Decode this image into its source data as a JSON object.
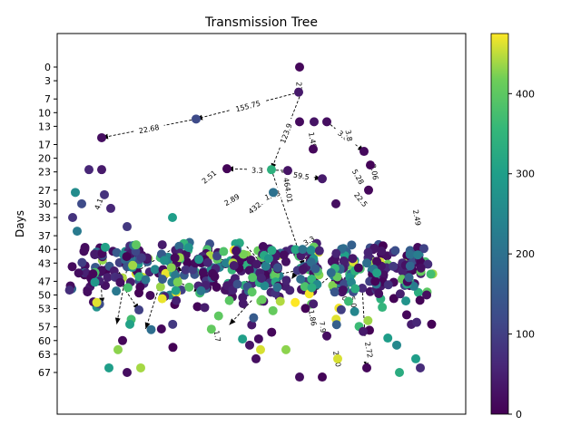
{
  "chart_data": {
    "type": "scatter",
    "title": "Transmission Tree",
    "xlabel": "",
    "ylabel": "Days",
    "ylim": [
      0,
      67
    ],
    "y_inverted": true,
    "y_ticks": [
      0,
      3,
      7,
      10,
      13,
      17,
      20,
      23,
      27,
      30,
      33,
      37,
      40,
      43,
      47,
      50,
      53,
      57,
      60,
      63,
      67
    ],
    "x_ticks_visible": false,
    "colormap": "viridis",
    "colorbar": {
      "range": [
        0,
        475
      ],
      "ticks": [
        0,
        100,
        200,
        300,
        400
      ]
    },
    "edges": [
      {
        "from": [
          330,
          3
        ],
        "to": [
          330,
          5.5
        ],
        "label": "27"
      },
      {
        "from": [
          330,
          5.5
        ],
        "to": [
          216,
          11.4
        ],
        "label": "155.75"
      },
      {
        "from": [
          216,
          11.4
        ],
        "to": [
          112,
          15.5
        ],
        "label": "22.68"
      },
      {
        "from": [
          330,
          6.5
        ],
        "to": [
          299,
          22.5
        ],
        "label": "123.9"
      },
      {
        "from": [
          317,
          22.7
        ],
        "to": [
          250,
          22.3
        ],
        "label": "3.3"
      },
      {
        "from": [
          310,
          23
        ],
        "to": [
          354,
          24.5
        ],
        "label": "59.5"
      },
      {
        "from": [
          360,
          12
        ],
        "to": [
          401,
          18.5
        ],
        "label": "3.05"
      }
    ],
    "edge_labels_other": [
      "3.8",
      "1.49",
      "5.28",
      "22.5",
      "2.51",
      "464.01",
      "432.57",
      "1.43",
      "7.9",
      "2.49",
      "2.06",
      "4.1",
      "5.02",
      "2.89",
      "3.3",
      "20.0",
      "6.0",
      "1.7",
      "2.72",
      "1.86"
    ],
    "points_note": "Approximately 600 infection events; x is arbitrary lineage position, y is infection day, color encodes case id.",
    "points": [
      {
        "x": 330,
        "y": 0,
        "c": 10
      },
      {
        "x": 329,
        "y": 5.5,
        "c": 40
      },
      {
        "x": 216,
        "y": 11.4,
        "c": 120
      },
      {
        "x": 112,
        "y": 15.5,
        "c": 20
      },
      {
        "x": 330,
        "y": 12,
        "c": 15
      },
      {
        "x": 346,
        "y": 12,
        "c": 30
      },
      {
        "x": 360,
        "y": 12,
        "c": 20
      },
      {
        "x": 345,
        "y": 18,
        "c": 10
      },
      {
        "x": 401,
        "y": 18.5,
        "c": 15
      },
      {
        "x": 408,
        "y": 21.5,
        "c": 5
      },
      {
        "x": 317,
        "y": 22.7,
        "c": 30
      },
      {
        "x": 299,
        "y": 22.5,
        "c": 340
      },
      {
        "x": 250,
        "y": 22.3,
        "c": 5
      },
      {
        "x": 355,
        "y": 24.5,
        "c": 40
      },
      {
        "x": 301,
        "y": 27.5,
        "c": 200
      },
      {
        "x": 370,
        "y": 30,
        "c": 20
      },
      {
        "x": 406,
        "y": 27,
        "c": 10
      },
      {
        "x": 98,
        "y": 22.5,
        "c": 60
      },
      {
        "x": 112,
        "y": 22.5,
        "c": 40
      },
      {
        "x": 83,
        "y": 27.5,
        "c": 260
      },
      {
        "x": 115,
        "y": 28,
        "c": 80
      }
    ]
  }
}
